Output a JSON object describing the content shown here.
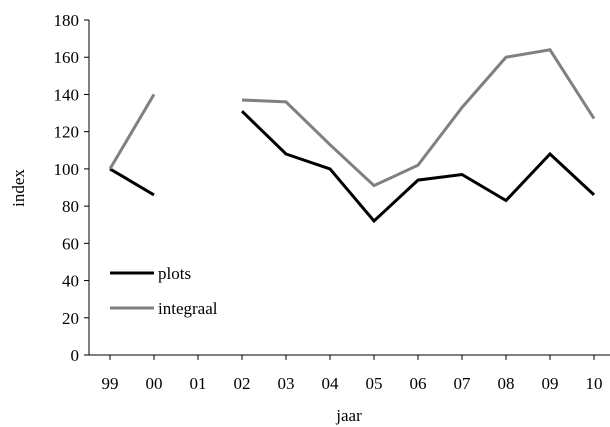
{
  "chart_data": {
    "type": "line",
    "title": "",
    "xlabel": "jaar",
    "ylabel": "index",
    "categories": [
      "99",
      "00",
      "01",
      "02",
      "03",
      "04",
      "05",
      "06",
      "07",
      "08",
      "09",
      "10"
    ],
    "ylim": [
      0,
      180
    ],
    "yticks": [
      "0",
      "20",
      "40",
      "60",
      "80",
      "100",
      "120",
      "140",
      "160",
      "180"
    ],
    "grid": false,
    "legend_position": "bottom-left",
    "series": [
      {
        "name": "plots",
        "color": "#000000",
        "values": [
          100,
          86,
          null,
          131,
          108,
          100,
          72,
          94,
          97,
          83,
          108,
          86
        ]
      },
      {
        "name": "integraal",
        "color": "#808080",
        "values": [
          100,
          140,
          null,
          137,
          136,
          113,
          91,
          102,
          133,
          160,
          164,
          127
        ]
      }
    ]
  }
}
